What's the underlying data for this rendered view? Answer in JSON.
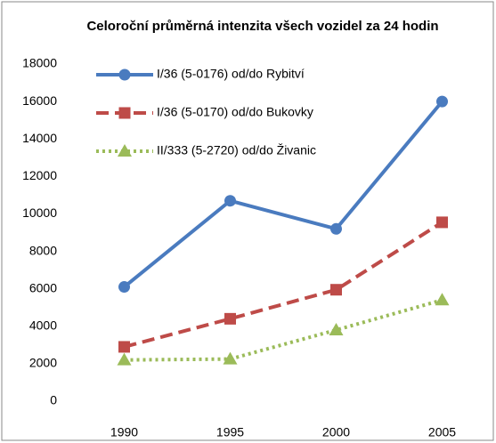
{
  "chart_data": {
    "type": "line",
    "title": "Celoroční průměrná intenzita všech vozidel za 24 hodin",
    "categories": [
      "1990",
      "1995",
      "2000",
      "2005"
    ],
    "series": [
      {
        "name": "I/36 (5-0176) od/do Rybitví",
        "color": "#4a7bbf",
        "marker": "circle",
        "line_style": "solid",
        "values": [
          6100,
          10700,
          9200,
          16000
        ]
      },
      {
        "name": "I/36 (5-0170) od/do Bukovky",
        "color": "#be4b48",
        "marker": "square",
        "line_style": "dashed",
        "values": [
          2900,
          4400,
          5950,
          9550
        ]
      },
      {
        "name": "II/333 (5-2720) od/do Živanic",
        "color": "#9bbb59",
        "marker": "triangle",
        "line_style": "dotted",
        "values": [
          2200,
          2250,
          3800,
          5400
        ]
      }
    ],
    "ylim": [
      0,
      18000
    ],
    "yticks": [
      0,
      2000,
      4000,
      6000,
      8000,
      10000,
      12000,
      14000,
      16000,
      18000
    ],
    "grid": false,
    "legend": "upper left"
  }
}
